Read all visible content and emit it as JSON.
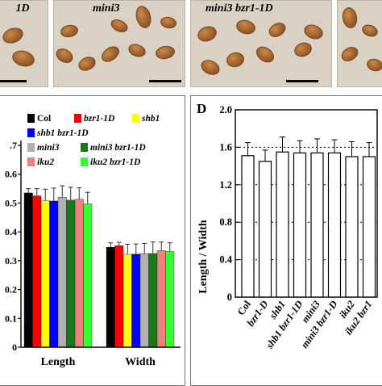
{
  "photos": [
    {
      "label": "1D"
    },
    {
      "label": "mini3"
    },
    {
      "label": "mini3 bzr1-1D"
    },
    {
      "label": ""
    }
  ],
  "panel_c": {
    "legend": [
      {
        "name": "Col",
        "color": "#000000"
      },
      {
        "name": "bzr1-1D",
        "color": "#ff0000"
      },
      {
        "name": "shb1",
        "color": "#ffff00"
      },
      {
        "name": "shb1 bzr1-1D",
        "color": "#0000ff"
      },
      {
        "name": "mini3",
        "color": "#b0b0b0"
      },
      {
        "name": "mini3 bzr1-1D",
        "color": "#1a7a1a"
      },
      {
        "name": "iku2",
        "color": "#f08080"
      },
      {
        "name": "iku2 bzr1-1D",
        "color": "#33ff33"
      }
    ],
    "y_tick_labels": [
      ".7",
      "0.6",
      "0.5",
      "0.4",
      "0.3",
      "0.2",
      "0.1",
      "0"
    ]
  },
  "panel_d": {
    "letter": "D",
    "y_tick_labels": [
      "2.0",
      "1.6",
      "1.2",
      "0.8",
      "0.4",
      "0"
    ]
  },
  "chart_data": [
    {
      "type": "bar",
      "categories": [
        "Length",
        "Width"
      ],
      "ylim": [
        0,
        0.7
      ],
      "series": [
        {
          "name": "Col",
          "values": [
            0.535,
            0.347
          ],
          "errors": [
            0.015,
            0.015
          ]
        },
        {
          "name": "bzr1-1D",
          "values": [
            0.525,
            0.352
          ],
          "errors": [
            0.025,
            0.012
          ]
        },
        {
          "name": "shb1",
          "values": [
            0.508,
            0.322
          ],
          "errors": [
            0.04,
            0.035
          ]
        },
        {
          "name": "shb1 bzr1-1D",
          "values": [
            0.507,
            0.323
          ],
          "errors": [
            0.045,
            0.035
          ]
        },
        {
          "name": "mini3",
          "values": [
            0.52,
            0.325
          ],
          "errors": [
            0.04,
            0.035
          ]
        },
        {
          "name": "mini3 bzr1-1D",
          "values": [
            0.51,
            0.325
          ],
          "errors": [
            0.045,
            0.04
          ]
        },
        {
          "name": "iku2",
          "values": [
            0.513,
            0.335
          ],
          "errors": [
            0.04,
            0.03
          ]
        },
        {
          "name": "iku2 bzr1-1D",
          "values": [
            0.497,
            0.332
          ],
          "errors": [
            0.04,
            0.03
          ]
        }
      ]
    },
    {
      "type": "bar",
      "ylabel": "Length / Width",
      "ylim": [
        0,
        2.0
      ],
      "categories": [
        "Col",
        "bzr1-D",
        "shb1",
        "shb1 bzr1-1D",
        "mini3",
        "mini3 bzr1-D",
        "iku2",
        "iku2 bzr1"
      ],
      "values": [
        1.51,
        1.45,
        1.55,
        1.54,
        1.54,
        1.54,
        1.5,
        1.5
      ],
      "errors": [
        0.14,
        0.12,
        0.16,
        0.13,
        0.15,
        0.14,
        0.16,
        0.15
      ],
      "gridlines": [
        1.6,
        1.2,
        0.8,
        0.4
      ]
    }
  ]
}
